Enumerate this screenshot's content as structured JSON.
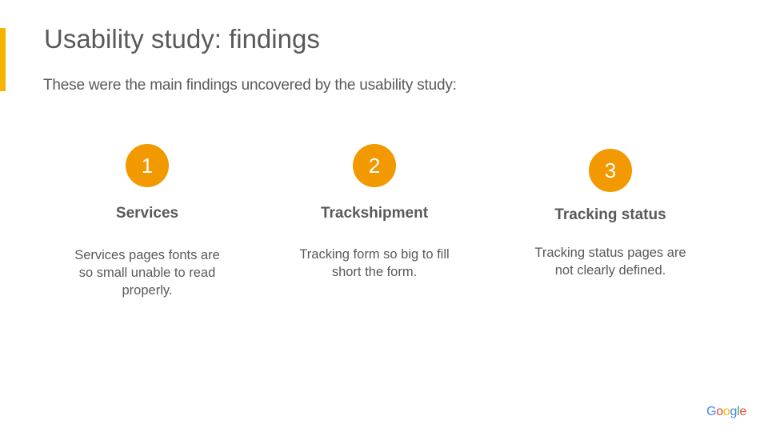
{
  "slide": {
    "title": "Usability study: findings",
    "subtitle": "These were the main findings uncovered by the usability study:",
    "accent_color": "#f4b400",
    "badge_color": "#f29900"
  },
  "findings": [
    {
      "number": "1",
      "heading": "Services",
      "description": "Services pages fonts are so small unable to read properly."
    },
    {
      "number": "2",
      "heading": "Trackshipment",
      "description": "Tracking form so big to fill short the form."
    },
    {
      "number": "3",
      "heading": "Tracking status",
      "description": "Tracking status pages are not clearly defined."
    }
  ],
  "logo": {
    "letters": [
      "G",
      "o",
      "o",
      "g",
      "l",
      "e"
    ],
    "colors": [
      "#4285f4",
      "#ea4335",
      "#fbbc05",
      "#4285f4",
      "#34a853",
      "#ea4335"
    ]
  }
}
